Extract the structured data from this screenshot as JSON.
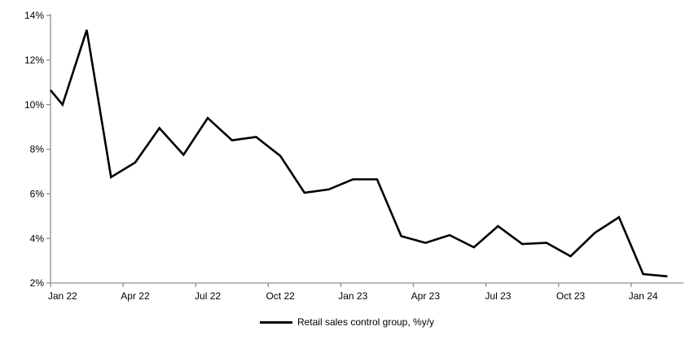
{
  "chart_data": {
    "type": "line",
    "title": "",
    "xlabel": "",
    "ylabel": "",
    "grid": false,
    "background": "#ffffff",
    "axis_color": "#8f8f8f",
    "text_color": "#000000",
    "y_axis": {
      "min": 2,
      "max": 14,
      "step": 2,
      "tick_labels": [
        "2%",
        "4%",
        "6%",
        "8%",
        "10%",
        "12%",
        "14%"
      ]
    },
    "x_axis": {
      "tick_interval_months": 3,
      "tick_labels": [
        "Jan 22",
        "Apr 22",
        "Jul 22",
        "Oct 22",
        "Jan 23",
        "Apr 23",
        "Jul 23",
        "Oct 23",
        "Jan 24"
      ]
    },
    "categories": [
      "Jan 22",
      "Feb 22",
      "Mar 22",
      "Apr 22",
      "May 22",
      "Jun 22",
      "Jul 22",
      "Aug 22",
      "Sep 22",
      "Oct 22",
      "Nov 22",
      "Dec 22",
      "Jan 23",
      "Feb 23",
      "Mar 23",
      "Apr 23",
      "May 23",
      "Jun 23",
      "Jul 23",
      "Aug 23",
      "Sep 23",
      "Oct 23",
      "Nov 23",
      "Dec 23",
      "Jan 24",
      "Feb 24"
    ],
    "series": [
      {
        "name": "Retail sales control group, %y/y",
        "color": "#000000",
        "line_width": 2.6,
        "start_at_axis_value": 10.65,
        "values": [
          10.0,
          13.35,
          6.75,
          7.4,
          8.95,
          7.75,
          9.4,
          8.4,
          8.55,
          7.7,
          6.05,
          6.2,
          6.65,
          6.65,
          4.1,
          3.8,
          4.15,
          3.6,
          4.55,
          3.75,
          3.8,
          3.2,
          4.25,
          4.95,
          2.4,
          2.3
        ]
      }
    ],
    "legend_position": "bottom-center"
  },
  "legend": {
    "label": "Retail sales control group, %y/y"
  }
}
